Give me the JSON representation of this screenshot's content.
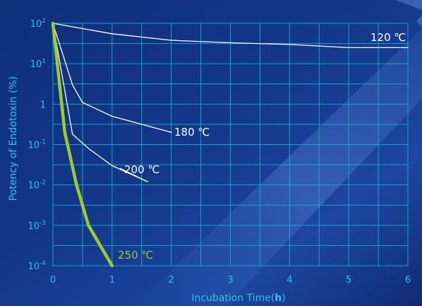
{
  "chart_data": {
    "type": "line",
    "title": "",
    "xlabel": "Incubation Time",
    "xlabel_unit_open": "(",
    "xlabel_unit": "h",
    "xlabel_unit_close": ")",
    "ylabel": "Potency of Endotoxin (%)",
    "xlim": [
      0,
      6
    ],
    "ylim": [
      0.0001,
      100
    ],
    "yscale": "log",
    "grid": true,
    "x_ticks": [
      "0",
      "1",
      "2",
      "3",
      "4",
      "5",
      "6"
    ],
    "y_ticks": [
      {
        "value": 100,
        "base": "10",
        "exp": "2"
      },
      {
        "value": 10,
        "base": "10",
        "exp": "1"
      },
      {
        "value": 1,
        "base": "1",
        "exp": ""
      },
      {
        "value": 0.1,
        "base": "10",
        "exp": "-1"
      },
      {
        "value": 0.01,
        "base": "10",
        "exp": "-2"
      },
      {
        "value": 0.001,
        "base": "10",
        "exp": "-3"
      },
      {
        "value": 0.0001,
        "base": "10",
        "exp": "-4"
      }
    ],
    "series": [
      {
        "name": "120 ℃",
        "color": "#ffffff",
        "x": [
          0,
          1,
          2,
          3,
          4,
          5,
          6
        ],
        "y": [
          100,
          55,
          38,
          33,
          30,
          25,
          25
        ]
      },
      {
        "name": "180 ℃",
        "color": "#ffffff",
        "x": [
          0,
          0.33,
          0.5,
          1,
          2
        ],
        "y": [
          100,
          3,
          1.1,
          0.5,
          0.2
        ]
      },
      {
        "name": "200 ℃",
        "color": "#ffffff",
        "x": [
          0,
          0.33,
          0.6,
          1,
          1.6
        ],
        "y": [
          100,
          0.18,
          0.08,
          0.03,
          0.012
        ]
      },
      {
        "name": "250 ℃",
        "color": "#9ccc2a",
        "x": [
          0,
          0.2,
          0.4,
          0.6,
          1
        ],
        "y": [
          100,
          0.2,
          0.01,
          0.001,
          0.0001
        ]
      }
    ]
  },
  "colors": {
    "grid": "#17b4d6",
    "axis_text": "#2fc3e6",
    "series_white": "#ffffff",
    "series_highlight": "#9ccc2a"
  }
}
